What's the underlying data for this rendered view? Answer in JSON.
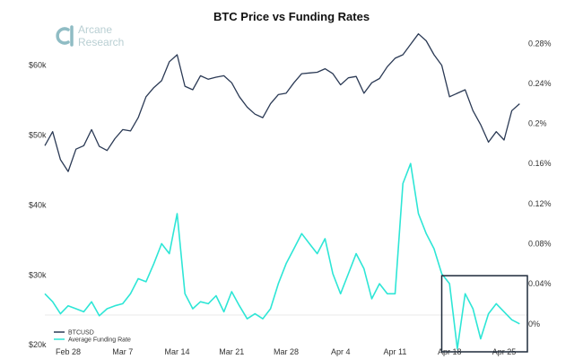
{
  "chart_data": {
    "type": "line",
    "title": "BTC Price vs Funding Rates",
    "logo": [
      "Arcane",
      "Research"
    ],
    "left_axis": {
      "ticks": [
        "$20k",
        "$30k",
        "$40k",
        "$50k",
        "$60k"
      ],
      "values": [
        20000,
        30000,
        40000,
        50000,
        60000
      ],
      "range": [
        19000,
        66000
      ]
    },
    "right_axis": {
      "ticks": [
        "0%",
        "0.04%",
        "0.08%",
        "0.12%",
        "0.16%",
        "0.2%",
        "0.24%",
        "0.28%"
      ],
      "values": [
        0,
        0.04,
        0.08,
        0.12,
        0.16,
        0.2,
        0.24,
        0.28
      ],
      "range": [
        -0.028,
        0.3
      ]
    },
    "x_ticks": [
      "Feb 28",
      "Mar 7",
      "Mar 14",
      "Mar 21",
      "Mar 28",
      "Apr 4",
      "Apr 11",
      "Apr 18",
      "Apr 25"
    ],
    "x_dates": [
      "2021-02-28",
      "2021-03-07",
      "2021-03-14",
      "2021-03-21",
      "2021-03-28",
      "2021-04-04",
      "2021-04-11",
      "2021-04-18",
      "2021-04-25"
    ],
    "x_range": [
      "2021-02-25",
      "2021-04-28"
    ],
    "series": [
      {
        "name": "BTCUSD",
        "axis": "left",
        "color": "#2b3a55",
        "x": [
          "2021-02-25",
          "2021-02-26",
          "2021-02-27",
          "2021-02-28",
          "2021-03-01",
          "2021-03-02",
          "2021-03-03",
          "2021-03-04",
          "2021-03-05",
          "2021-03-06",
          "2021-03-07",
          "2021-03-08",
          "2021-03-09",
          "2021-03-10",
          "2021-03-11",
          "2021-03-12",
          "2021-03-13",
          "2021-03-14",
          "2021-03-15",
          "2021-03-16",
          "2021-03-17",
          "2021-03-18",
          "2021-03-19",
          "2021-03-20",
          "2021-03-21",
          "2021-03-22",
          "2021-03-23",
          "2021-03-24",
          "2021-03-25",
          "2021-03-26",
          "2021-03-27",
          "2021-03-28",
          "2021-03-29",
          "2021-03-30",
          "2021-03-31",
          "2021-04-01",
          "2021-04-02",
          "2021-04-03",
          "2021-04-04",
          "2021-04-05",
          "2021-04-06",
          "2021-04-07",
          "2021-04-08",
          "2021-04-09",
          "2021-04-10",
          "2021-04-11",
          "2021-04-12",
          "2021-04-13",
          "2021-04-14",
          "2021-04-15",
          "2021-04-16",
          "2021-04-17",
          "2021-04-18",
          "2021-04-19",
          "2021-04-20",
          "2021-04-21",
          "2021-04-22",
          "2021-04-23",
          "2021-04-24",
          "2021-04-25",
          "2021-04-26",
          "2021-04-27"
        ],
        "values": [
          48500,
          50500,
          46500,
          44800,
          48000,
          48500,
          50800,
          48400,
          47800,
          49500,
          50800,
          50600,
          52500,
          55500,
          56800,
          57800,
          60500,
          61500,
          57000,
          56500,
          58500,
          58000,
          58300,
          58500,
          57500,
          55500,
          54000,
          53000,
          52500,
          54500,
          55800,
          56000,
          57500,
          58800,
          58900,
          59000,
          59500,
          58800,
          57200,
          58200,
          58400,
          56000,
          57500,
          58100,
          59800,
          61000,
          61500,
          63000,
          64500,
          63500,
          61500,
          60000,
          55500,
          56000,
          56500,
          53500,
          51500,
          49000,
          50500,
          49300,
          53500,
          54500
        ]
      },
      {
        "name": "Average Funding Rate",
        "axis": "right",
        "color": "#2ee6d6",
        "x": [
          "2021-02-25",
          "2021-02-26",
          "2021-02-27",
          "2021-02-28",
          "2021-03-01",
          "2021-03-02",
          "2021-03-03",
          "2021-03-04",
          "2021-03-05",
          "2021-03-06",
          "2021-03-07",
          "2021-03-08",
          "2021-03-09",
          "2021-03-10",
          "2021-03-11",
          "2021-03-12",
          "2021-03-13",
          "2021-03-14",
          "2021-03-15",
          "2021-03-16",
          "2021-03-17",
          "2021-03-18",
          "2021-03-19",
          "2021-03-20",
          "2021-03-21",
          "2021-03-22",
          "2021-03-23",
          "2021-03-24",
          "2021-03-25",
          "2021-03-26",
          "2021-03-27",
          "2021-03-28",
          "2021-03-29",
          "2021-03-30",
          "2021-03-31",
          "2021-04-01",
          "2021-04-02",
          "2021-04-03",
          "2021-04-04",
          "2021-04-05",
          "2021-04-06",
          "2021-04-07",
          "2021-04-08",
          "2021-04-09",
          "2021-04-10",
          "2021-04-11",
          "2021-04-12",
          "2021-04-13",
          "2021-04-14",
          "2021-04-15",
          "2021-04-16",
          "2021-04-17",
          "2021-04-18",
          "2021-04-19",
          "2021-04-20",
          "2021-04-21",
          "2021-04-22",
          "2021-04-23",
          "2021-04-24",
          "2021-04-25",
          "2021-04-26",
          "2021-04-27"
        ],
        "values": [
          0.03,
          0.022,
          0.01,
          0.018,
          0.015,
          0.012,
          0.022,
          0.008,
          0.015,
          0.018,
          0.02,
          0.03,
          0.045,
          0.042,
          0.06,
          0.08,
          0.07,
          0.11,
          0.03,
          0.015,
          0.022,
          0.02,
          0.028,
          0.012,
          0.032,
          0.018,
          0.005,
          0.01,
          0.005,
          0.015,
          0.04,
          0.06,
          0.075,
          0.09,
          0.08,
          0.07,
          0.085,
          0.05,
          0.03,
          0.05,
          0.07,
          0.055,
          0.025,
          0.04,
          0.03,
          0.03,
          0.14,
          0.16,
          0.11,
          0.09,
          0.075,
          0.05,
          0.04,
          -0.025,
          0.03,
          0.015,
          -0.015,
          0.01,
          0.02,
          0.012,
          0.004,
          0.0
        ]
      }
    ],
    "highlight_box": {
      "x_range": [
        "2021-04-17",
        "2021-04-28"
      ],
      "y_range_right": [
        -0.028,
        0.048
      ]
    },
    "colors": {
      "btc": "#2b3a55",
      "funding": "#2ee6d6",
      "logo": "#8fbcc4"
    }
  }
}
